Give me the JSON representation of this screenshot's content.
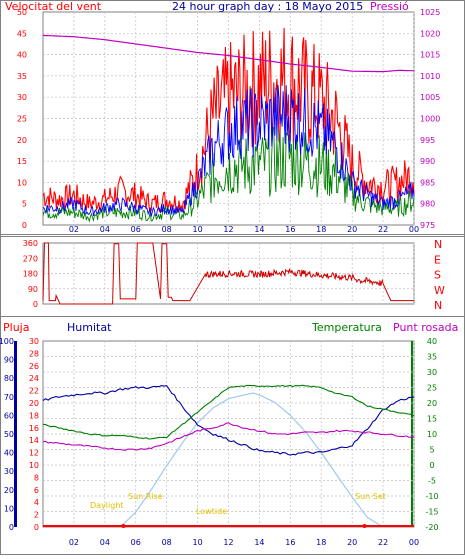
{
  "colors": {
    "frame": "#808080",
    "grid": "#c0c0c0",
    "wind_gust": "#ff0000",
    "wind_avg_blue": "#0000ff",
    "wind_avg_green": "#008000",
    "pressure": "#c000c0",
    "direction": "#d00000",
    "humidity": "#0000a0",
    "temperature": "#008000",
    "dewpoint": "#c000c0",
    "sun": "#a0c8f0",
    "rain": "#ff0000",
    "sunlabels": "#e0c000"
  },
  "panel1": {
    "title": "24 hour graph day : 18 Mayo 2015",
    "left_label": "Velocitat del vent",
    "right_label": "Pressió"
  },
  "panel3": {
    "rain_label": "Pluja",
    "hum_label": "Humitat",
    "temp_label": "Temperatura",
    "dew_label": "Punt rosada",
    "daylight": "Daylight",
    "sunrise": "Sun Rise",
    "sunset": "Sun Set",
    "lowtide": "Lowtide"
  },
  "chart_data": [
    {
      "type": "line",
      "x_ticks": [
        "02",
        "04",
        "06",
        "08",
        "10",
        "12",
        "14",
        "16",
        "18",
        "20",
        "22",
        "00"
      ],
      "y_ticks_left": [
        "0",
        "5",
        "10",
        "15",
        "20",
        "25",
        "30",
        "35",
        "40",
        "45",
        "50"
      ],
      "y_ticks_right": [
        "975",
        "980",
        "985",
        "990",
        "995",
        "1000",
        "1005",
        "1010",
        "1015",
        "1020",
        "1025"
      ],
      "ylim_left": [
        0,
        50
      ],
      "ylim_right": [
        975,
        1025
      ],
      "series": [
        {
          "key": "gust",
          "x": [
            0,
            1,
            2,
            3,
            4,
            5,
            6,
            7,
            8,
            9,
            10,
            11,
            12,
            13,
            14,
            15,
            16,
            17,
            18,
            19,
            20,
            21,
            22,
            23,
            24
          ],
          "values": [
            7,
            6,
            7,
            5,
            6,
            8,
            7,
            5,
            6,
            5,
            13,
            25,
            30,
            31,
            33,
            34,
            34,
            31,
            29,
            24,
            14,
            10,
            9,
            10,
            12
          ]
        },
        {
          "key": "avg",
          "x": [
            0,
            1,
            2,
            3,
            4,
            5,
            6,
            7,
            8,
            9,
            10,
            11,
            12,
            13,
            14,
            15,
            16,
            17,
            18,
            19,
            20,
            21,
            22,
            23,
            24
          ],
          "values": [
            4,
            4,
            5,
            3,
            4,
            5,
            4,
            3,
            4,
            3,
            10,
            18,
            22,
            24,
            24,
            25,
            26,
            24,
            22,
            18,
            10,
            7,
            5,
            6,
            8
          ]
        },
        {
          "key": "avg_green",
          "x": [
            0,
            1,
            2,
            3,
            4,
            5,
            6,
            7,
            8,
            9,
            10,
            11,
            12,
            13,
            14,
            15,
            16,
            17,
            18,
            19,
            20,
            21,
            22,
            23,
            24
          ],
          "values": [
            3,
            3,
            3,
            2,
            3,
            3,
            3,
            2,
            3,
            2,
            6,
            11,
            14,
            14,
            14,
            15,
            16,
            15,
            14,
            12,
            7,
            5,
            4,
            4,
            6
          ]
        },
        {
          "key": "pressure",
          "x": [
            0,
            2,
            4,
            6,
            8,
            10,
            12,
            14,
            16,
            18,
            20,
            22,
            23,
            24
          ],
          "values": [
            1019.5,
            1019.2,
            1018.5,
            1017.5,
            1016.5,
            1015.5,
            1014.8,
            1013.8,
            1012.8,
            1012,
            1011.1,
            1011,
            1011.3,
            1011.2
          ]
        }
      ]
    },
    {
      "type": "line",
      "y_ticks_left": [
        "0",
        "90",
        "180",
        "270",
        "360"
      ],
      "y_ticks_right": [
        "N",
        "W",
        "S",
        "E",
        "N"
      ],
      "ylim": [
        0,
        360
      ],
      "series": [
        {
          "key": "direction",
          "x": [
            0,
            0.1,
            0.35,
            0.4,
            0.8,
            0.85,
            1,
            1.1,
            4.5,
            4.6,
            4.9,
            5,
            6,
            6.1,
            7,
            7.1,
            7.6,
            7.7,
            8,
            8.1,
            8.3,
            8.4,
            9.5,
            10.5,
            12,
            14,
            16,
            18,
            20,
            20.5,
            21.5,
            22,
            22.5,
            24
          ],
          "values": [
            20,
            360,
            360,
            20,
            20,
            50,
            20,
            0,
            0,
            355,
            355,
            30,
            30,
            360,
            360,
            360,
            30,
            355,
            355,
            40,
            40,
            20,
            20,
            175,
            180,
            175,
            190,
            170,
            155,
            140,
            130,
            120,
            20,
            20
          ]
        }
      ]
    },
    {
      "type": "line",
      "y_ticks_rain": [
        "0",
        "2",
        "4",
        "6",
        "8",
        "10",
        "12",
        "14",
        "16",
        "18",
        "20",
        "22",
        "24",
        "26",
        "28",
        "30"
      ],
      "y_ticks_hum": [
        "0",
        "10",
        "20",
        "30",
        "40",
        "50",
        "60",
        "70",
        "80",
        "90",
        "100"
      ],
      "y_ticks_temp": [
        "-20",
        "-15",
        "-10",
        "-5",
        "0",
        "5",
        "10",
        "15",
        "20",
        "25",
        "30",
        "35",
        "40"
      ],
      "ylim_hum": [
        0,
        100
      ],
      "ylim_temp": [
        -20,
        40
      ],
      "series": [
        {
          "key": "humidity",
          "x": [
            0,
            1,
            2,
            3,
            4,
            5,
            6,
            7,
            8,
            9,
            10,
            11,
            12,
            13,
            14,
            15,
            16,
            17,
            18,
            19,
            20,
            21,
            22,
            23,
            24
          ],
          "values": [
            68,
            70,
            71,
            72,
            72,
            74,
            75,
            75,
            76,
            65,
            55,
            50,
            47,
            44,
            41,
            40,
            39,
            40,
            40,
            42,
            44,
            53,
            63,
            68,
            70
          ]
        },
        {
          "key": "temperature",
          "x": [
            0,
            1,
            2,
            3,
            4,
            5,
            6,
            7,
            8,
            9,
            10,
            11,
            12,
            13,
            14,
            15,
            16,
            17,
            18,
            19,
            20,
            21,
            22,
            23,
            24
          ],
          "values": [
            13,
            12,
            11,
            10,
            9.5,
            9.5,
            9,
            8.5,
            9,
            13,
            17,
            21,
            25,
            25.5,
            25.5,
            25.5,
            25.5,
            25.5,
            25,
            23,
            22,
            19,
            18,
            17,
            16
          ]
        },
        {
          "key": "dewpoint",
          "x": [
            0,
            1,
            2,
            3,
            4,
            5,
            6,
            7,
            8,
            9,
            10,
            11,
            12,
            13,
            14,
            15,
            16,
            17,
            18,
            19,
            20,
            21,
            22,
            23,
            24
          ],
          "values": [
            7.5,
            7,
            6.5,
            6,
            5.5,
            5,
            5,
            5.5,
            7,
            9,
            11,
            12,
            13.5,
            12,
            11,
            10,
            10,
            10.5,
            10.5,
            11,
            11,
            10.5,
            10,
            9.5,
            9
          ]
        },
        {
          "key": "sun",
          "x": [
            5,
            6,
            7,
            8,
            9,
            10,
            11,
            12,
            13,
            13.6,
            14,
            15,
            16,
            17,
            18,
            19,
            20,
            21,
            22
          ],
          "values": [
            0,
            8,
            20,
            33,
            45,
            56,
            64,
            69,
            71,
            72,
            71,
            67,
            60,
            51,
            40,
            28,
            16,
            5,
            0
          ]
        }
      ]
    }
  ]
}
